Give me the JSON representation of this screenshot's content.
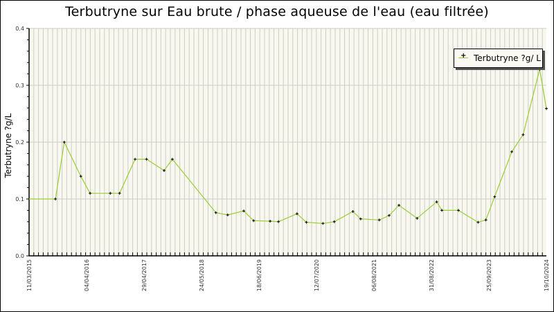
{
  "title": "Terbutryne sur Eau brute / phase aqueuse de l'eau (eau filtrée)",
  "legend": {
    "label": "Terbutryne ?g/ L"
  },
  "colors": {
    "line": "#9acd32",
    "marker": "#000000",
    "plot_bg": "#f8f8ee",
    "grid": "#cccccc"
  },
  "chart_data": {
    "type": "line",
    "title": "Terbutryne sur Eau brute / phase aqueuse de l'eau (eau filtrée)",
    "xlabel": "",
    "ylabel": "Terbutryne ?g/L",
    "ylim": [
      0,
      0.4
    ],
    "yticks": [
      "0.0",
      "0.1",
      "0.2",
      "0.3",
      "0.4"
    ],
    "xtick_labels": [
      "11/03/2015",
      "04/04/2016",
      "29/04/2017",
      "24/05/2018",
      "18/06/2019",
      "12/07/2020",
      "06/08/2021",
      "31/08/2022",
      "25/09/2023",
      "19/10/2024"
    ],
    "grid": true,
    "legend_position": "upper right",
    "series": [
      {
        "name": "Terbutryne ?g/ L",
        "x_frac": [
          0.0,
          0.051,
          0.068,
          0.1,
          0.118,
          0.157,
          0.175,
          0.205,
          0.227,
          0.261,
          0.277,
          0.361,
          0.384,
          0.415,
          0.434,
          0.466,
          0.482,
          0.518,
          0.536,
          0.568,
          0.59,
          0.626,
          0.641,
          0.677,
          0.696,
          0.715,
          0.75,
          0.788,
          0.798,
          0.83,
          0.868,
          0.883,
          0.9,
          0.933,
          0.955,
          0.987,
          1.0
        ],
        "values": [
          0.1,
          0.1,
          0.2,
          0.14,
          0.11,
          0.11,
          0.11,
          0.17,
          0.17,
          0.15,
          0.17,
          0.076,
          0.072,
          0.079,
          0.062,
          0.061,
          0.06,
          0.074,
          0.059,
          0.057,
          0.06,
          0.078,
          0.065,
          0.063,
          0.071,
          0.089,
          0.066,
          0.095,
          0.08,
          0.08,
          0.059,
          0.063,
          0.104,
          0.183,
          0.213,
          0.328,
          0.259
        ],
        "marker_hidden_first": true
      }
    ]
  }
}
